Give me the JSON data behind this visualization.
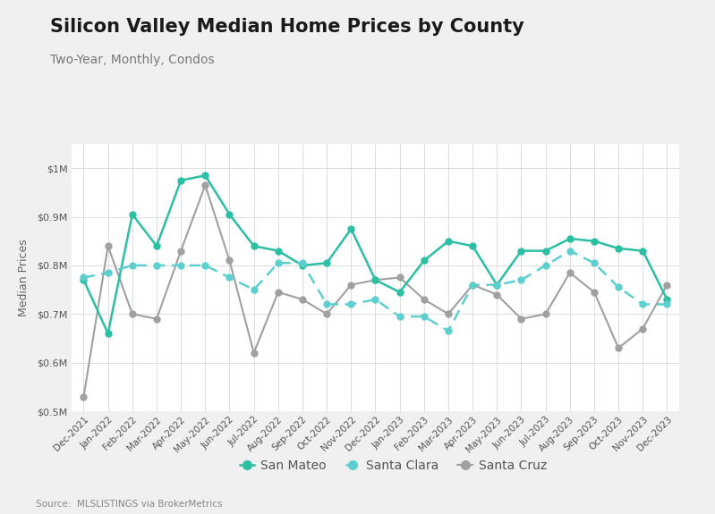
{
  "title": "Silicon Valley Median Home Prices by County",
  "subtitle": "Two-Year, Monthly, Condos",
  "ylabel": "Median Prices",
  "source": "Source:  MLSLISTINGS via BrokerMetrics",
  "ylim": [
    500000,
    1050000
  ],
  "yticks": [
    500000,
    600000,
    700000,
    800000,
    900000,
    1000000
  ],
  "ytick_labels": [
    "$0.5M",
    "$0.6M",
    "$0.7M",
    "$0.8M",
    "$0.9M",
    "$1M"
  ],
  "months": [
    "Dec-2021",
    "Jan-2022",
    "Feb-2022",
    "Mar-2022",
    "Apr-2022",
    "May-2022",
    "Jun-2022",
    "Jul-2022",
    "Aug-2022",
    "Sep-2022",
    "Oct-2022",
    "Nov-2022",
    "Dec-2022",
    "Jan-2023",
    "Feb-2023",
    "Mar-2023",
    "Apr-2023",
    "May-2023",
    "Jun-2023",
    "Jul-2023",
    "Aug-2023",
    "Sep-2023",
    "Oct-2023",
    "Nov-2023",
    "Dec-2023"
  ],
  "san_mateo": [
    770000,
    660000,
    905000,
    840000,
    975000,
    985000,
    905000,
    840000,
    830000,
    800000,
    805000,
    875000,
    770000,
    745000,
    810000,
    850000,
    840000,
    760000,
    830000,
    830000,
    855000,
    850000,
    835000,
    830000,
    730000
  ],
  "santa_clara": [
    775000,
    785000,
    800000,
    800000,
    800000,
    800000,
    775000,
    750000,
    805000,
    805000,
    720000,
    720000,
    730000,
    695000,
    695000,
    665000,
    760000,
    760000,
    770000,
    800000,
    830000,
    805000,
    755000,
    720000,
    720000
  ],
  "santa_cruz": [
    530000,
    840000,
    700000,
    690000,
    830000,
    965000,
    810000,
    620000,
    745000,
    730000,
    700000,
    760000,
    770000,
    775000,
    730000,
    700000,
    760000,
    740000,
    690000,
    700000,
    785000,
    745000,
    630000,
    670000,
    760000
  ],
  "san_mateo_color": "#2bbfa4",
  "santa_clara_color": "#5ecfcf",
  "santa_cruz_color": "#a0a0a0",
  "outer_bg": "#f0f0f0",
  "inner_bg": "#ffffff",
  "grid_color": "#dddddd",
  "title_fontsize": 15,
  "subtitle_fontsize": 10,
  "axis_label_fontsize": 9,
  "tick_fontsize": 8,
  "legend_fontsize": 10,
  "source_fontsize": 7.5
}
